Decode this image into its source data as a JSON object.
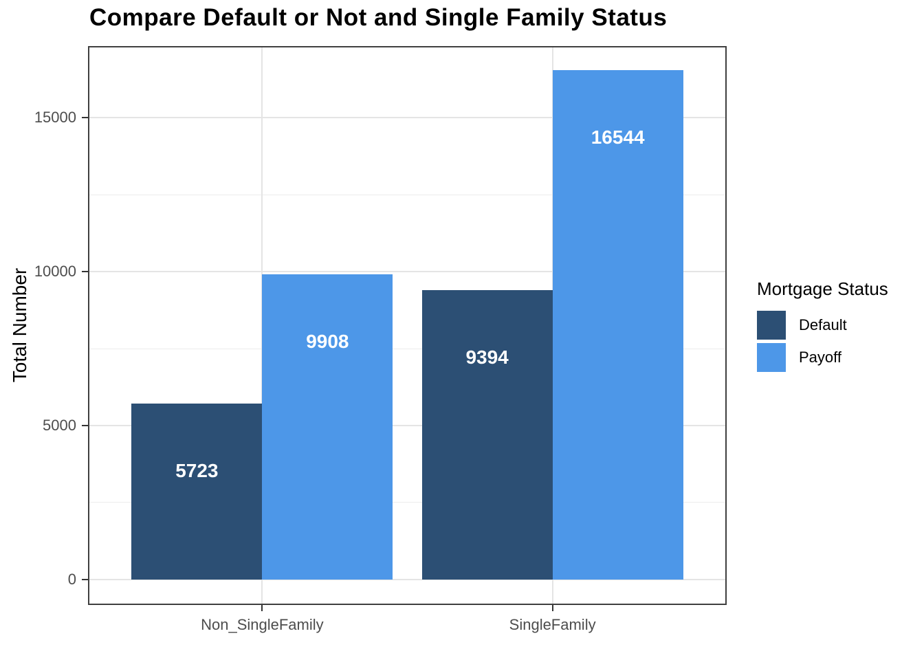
{
  "title": "Compare Default or Not and Single Family Status",
  "chart_data": {
    "type": "bar",
    "title": "Compare Default or Not and Single Family Status",
    "categories": [
      "Non_SingleFamily",
      "SingleFamily"
    ],
    "series": [
      {
        "name": "Default",
        "color": "#2C4F74",
        "values": [
          5723,
          9394
        ]
      },
      {
        "name": "Payoff",
        "color": "#4D97E8",
        "values": [
          9908,
          16544
        ]
      }
    ],
    "xlabel": "",
    "ylabel": "Total Number",
    "y_ticks": [
      0,
      5000,
      10000,
      15000
    ],
    "y_minor_ticks": [
      2500,
      7500,
      12500
    ],
    "ylim": [
      -830,
      17330
    ],
    "bar_labels_shown": true,
    "grid": "horizontal major+minor, vertical major at category centers",
    "legend": {
      "title": "Mortgage Status",
      "position": "right"
    }
  },
  "style": {
    "bar_label_color": "#FFFFFF",
    "axis_text_color": "#4D4D4D",
    "axis_title_color": "#000000",
    "grid_major_color": "#E4E4E4",
    "grid_minor_color": "#ECECEC",
    "panel_border_color": "#3F3F3F",
    "tick_mark_color": "#333333",
    "background": "#FFFFFF"
  }
}
